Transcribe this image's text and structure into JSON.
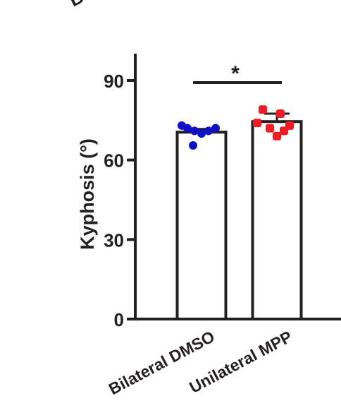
{
  "chart_data": {
    "type": "bar",
    "categories": [
      "Bilateral DMSO",
      "Unilateral MPP"
    ],
    "values": [
      70.5,
      74.5
    ],
    "errors": [
      1.2,
      3.0
    ],
    "points": [
      [
        73,
        72,
        71,
        70,
        71,
        72,
        65.5
      ],
      [
        79,
        77.5,
        74,
        73,
        72,
        71,
        69
      ]
    ],
    "point_colors": [
      "#1010c8",
      "#ee1c24"
    ],
    "ylabel": "Kyphosis (°)",
    "xlabel": "",
    "title": "",
    "ylim": [
      0,
      100
    ],
    "yticks": [
      0,
      30,
      60,
      90
    ],
    "yticks_labels": [
      "0",
      "30",
      "60",
      "90"
    ],
    "significance": {
      "label": "*",
      "pair": [
        0,
        1
      ],
      "level": 90
    },
    "grid": false,
    "legend": "none"
  },
  "top_label_fragment": "B"
}
